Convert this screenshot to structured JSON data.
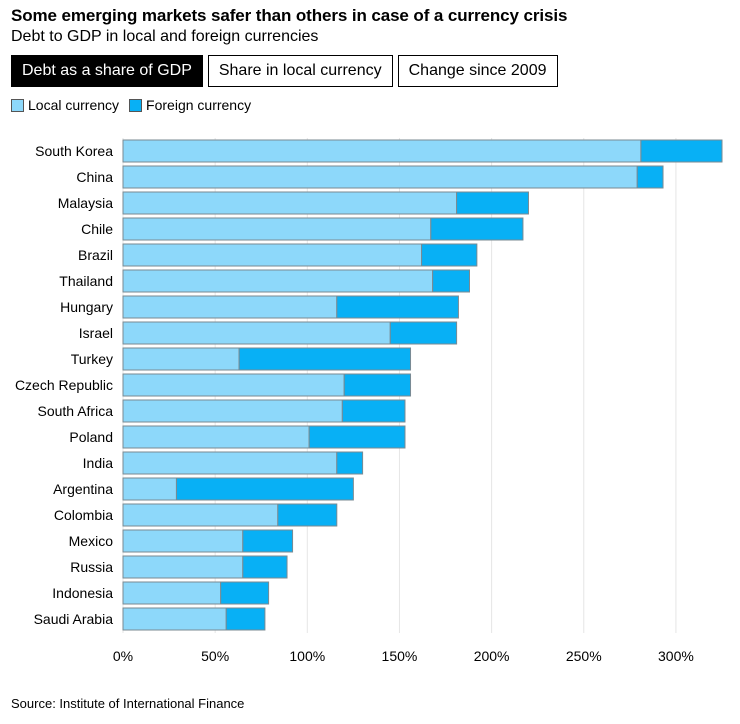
{
  "header": {
    "title": "Some emerging markets safer than others in case of a currency crisis",
    "subtitle": "Debt to GDP in local and foreign currencies"
  },
  "tabs": [
    {
      "label": "Debt as a share of GDP",
      "active": true
    },
    {
      "label": "Share in local currency",
      "active": false
    },
    {
      "label": "Change since 2009",
      "active": false
    }
  ],
  "colors": {
    "local": "#8dd8fa",
    "foreign": "#08b0f5",
    "border": "#7a8a92",
    "grid": "#e6e6e6"
  },
  "source": "Source: Institute of International Finance",
  "chart_data": {
    "type": "bar",
    "orientation": "horizontal",
    "stacked": true,
    "title": "Some emerging markets safer than others in case of a currency crisis",
    "subtitle": "Debt to GDP in local and foreign currencies",
    "xlim": [
      0,
      325
    ],
    "xticks": [
      0,
      50,
      100,
      150,
      200,
      250,
      300
    ],
    "xtick_labels": [
      "0%",
      "50%",
      "100%",
      "150%",
      "200%",
      "250%",
      "300%"
    ],
    "grid": true,
    "legend": "top-left",
    "categories": [
      "South Korea",
      "China",
      "Malaysia",
      "Chile",
      "Brazil",
      "Thailand",
      "Hungary",
      "Israel",
      "Turkey",
      "Czech Republic",
      "South Africa",
      "Poland",
      "India",
      "Argentina",
      "Colombia",
      "Mexico",
      "Russia",
      "Indonesia",
      "Saudi Arabia"
    ],
    "series": [
      {
        "name": "Local currency",
        "values": [
          281,
          279,
          181,
          167,
          162,
          168,
          116,
          145,
          63,
          120,
          119,
          101,
          116,
          29,
          84,
          65,
          65,
          53,
          56
        ]
      },
      {
        "name": "Foreign currency",
        "values": [
          44,
          14,
          39,
          50,
          30,
          20,
          66,
          36,
          93,
          36,
          34,
          52,
          14,
          96,
          32,
          27,
          24,
          26,
          21
        ]
      }
    ]
  }
}
